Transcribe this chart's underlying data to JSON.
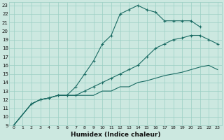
{
  "xlabel": "Humidex (Indice chaleur)",
  "bg_color": "#cce8e0",
  "grid_color": "#9acfc4",
  "line_color": "#1a6b63",
  "xlim": [
    -0.5,
    23.5
  ],
  "ylim": [
    9,
    23.4
  ],
  "xticks": [
    0,
    1,
    2,
    3,
    4,
    5,
    6,
    7,
    8,
    9,
    10,
    11,
    12,
    13,
    14,
    15,
    16,
    17,
    18,
    19,
    20,
    21,
    22,
    23
  ],
  "yticks": [
    9,
    10,
    11,
    12,
    13,
    14,
    15,
    16,
    17,
    18,
    19,
    20,
    21,
    22,
    23
  ],
  "series": [
    {
      "x": [
        0,
        2,
        3,
        4,
        5,
        6,
        7,
        8,
        9,
        10,
        11,
        12,
        13,
        14,
        15,
        16,
        17,
        18,
        19,
        20,
        21
      ],
      "y": [
        9,
        11.5,
        12,
        12.2,
        12.5,
        12.5,
        13.5,
        15,
        16.5,
        18.5,
        19.5,
        22,
        22.5,
        23,
        22.5,
        22.2,
        21.2,
        21.2,
        21.2,
        21.2,
        20.5
      ],
      "marker": true
    },
    {
      "x": [
        0,
        2,
        3,
        4,
        5,
        6,
        7,
        8,
        9,
        10,
        11,
        12,
        13,
        14,
        15,
        16,
        17,
        18,
        19,
        20,
        21,
        22,
        23
      ],
      "y": [
        9,
        11.5,
        12,
        12.2,
        12.5,
        12.5,
        12.5,
        13,
        13.5,
        14,
        14.5,
        15,
        15.5,
        16,
        17,
        18,
        18.5,
        19,
        19.2,
        19.5,
        19.5,
        19,
        18.5
      ],
      "marker": true
    },
    {
      "x": [
        0,
        2,
        3,
        4,
        5,
        6,
        7,
        8,
        9,
        10,
        11,
        12,
        13,
        14,
        15,
        16,
        17,
        18,
        19,
        20,
        21,
        22,
        23
      ],
      "y": [
        9,
        11.5,
        12,
        12.2,
        12.5,
        12.5,
        12.5,
        12.5,
        12.5,
        13,
        13,
        13.5,
        13.5,
        14,
        14.2,
        14.5,
        14.8,
        15,
        15.2,
        15.5,
        15.8,
        16,
        15.5
      ],
      "marker": false
    }
  ]
}
